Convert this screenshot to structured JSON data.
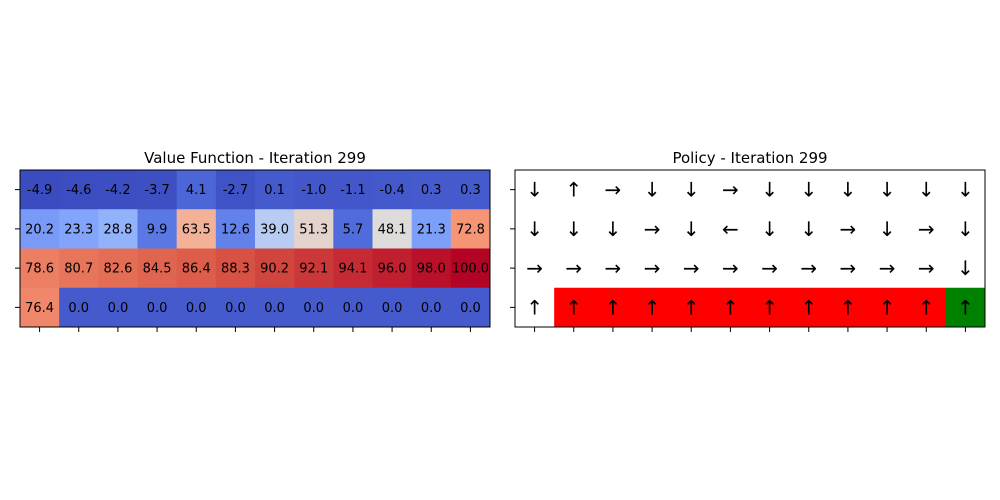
{
  "chart_data": [
    {
      "type": "heatmap",
      "title": "Value Function - Iteration 299",
      "xlabel": "",
      "ylabel": "",
      "colormap": "coolwarm",
      "value_range": [
        -4.9,
        100.0
      ],
      "x_tick_labels": [],
      "y_tick_labels": [],
      "rows": [
        [
          -4.9,
          -4.6,
          -4.2,
          -3.7,
          4.1,
          -2.7,
          0.1,
          -1.0,
          -1.1,
          -0.4,
          0.3,
          0.3
        ],
        [
          20.2,
          23.3,
          28.8,
          9.9,
          63.5,
          12.6,
          39.0,
          51.3,
          5.7,
          48.1,
          21.3,
          72.8
        ],
        [
          78.6,
          80.7,
          82.6,
          84.5,
          86.4,
          88.3,
          90.2,
          92.1,
          94.1,
          96.0,
          98.0,
          100.0
        ],
        [
          76.4,
          0.0,
          0.0,
          0.0,
          0.0,
          0.0,
          0.0,
          0.0,
          0.0,
          0.0,
          0.0,
          0.0
        ]
      ]
    },
    {
      "type": "table",
      "title": "Policy - Iteration 299",
      "x_tick_labels": [],
      "y_tick_labels": [],
      "rows": [
        [
          "↓",
          "↑",
          "→",
          "↓",
          "↓",
          "→",
          "↓",
          "↓",
          "↓",
          "↓",
          "↓",
          "↓"
        ],
        [
          "↓",
          "↓",
          "↓",
          "→",
          "↓",
          "←",
          "↓",
          "↓",
          "→",
          "↓",
          "→",
          "↓"
        ],
        [
          "→",
          "→",
          "→",
          "→",
          "→",
          "→",
          "→",
          "→",
          "→",
          "→",
          "→",
          "↓"
        ],
        [
          "↑",
          "↑",
          "↑",
          "↑",
          "↑",
          "↑",
          "↑",
          "↑",
          "↑",
          "↑",
          "↑",
          "↑"
        ]
      ],
      "cell_colors": [
        [
          "white",
          "white",
          "white",
          "white",
          "white",
          "white",
          "white",
          "white",
          "white",
          "white",
          "white",
          "white"
        ],
        [
          "white",
          "white",
          "white",
          "white",
          "white",
          "white",
          "white",
          "white",
          "white",
          "white",
          "white",
          "white"
        ],
        [
          "white",
          "white",
          "white",
          "white",
          "white",
          "white",
          "white",
          "white",
          "white",
          "white",
          "white",
          "white"
        ],
        [
          "white",
          "red",
          "red",
          "red",
          "red",
          "red",
          "red",
          "red",
          "red",
          "red",
          "red",
          "green"
        ]
      ],
      "colors": {
        "white": "#ffffff",
        "red": "#ff0000",
        "green": "#008000"
      }
    }
  ]
}
